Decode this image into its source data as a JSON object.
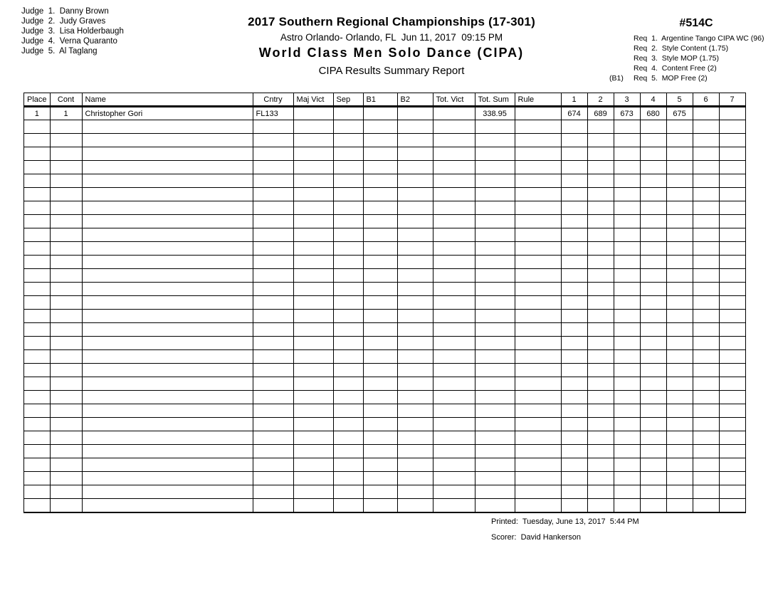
{
  "judges": [
    "Judge  1.  Danny Brown",
    "Judge  2.  Judy Graves",
    "Judge  3.  Lisa Holderbaugh",
    "Judge  4.  Verna Quaranto",
    "Judge  5.  Al Taglang"
  ],
  "header": {
    "title": "2017 Southern Regional Championships (17-301)",
    "venue_date": "Astro Orlando- Orlando, FL  Jun 11, 2017  09:15 PM",
    "event": "World Class Men Solo Dance (CIPA)",
    "report": "CIPA Results Summary Report",
    "event_number": "#514C",
    "requirements": [
      {
        "prefix": "",
        "text": "Req  1.  Argentine Tango CIPA WC (96)"
      },
      {
        "prefix": "",
        "text": "Req  2.  Style Content (1.75)"
      },
      {
        "prefix": "",
        "text": "Req  3.  Style MOP (1.75)"
      },
      {
        "prefix": "",
        "text": "Req  4.  Content Free (2)"
      },
      {
        "prefix": "(B1)",
        "text": "Req  5.  MOP Free (2)"
      }
    ]
  },
  "table": {
    "columns": [
      "Place",
      "Cont",
      "Name",
      "Cntry",
      "Maj Vict",
      "Sep",
      "B1",
      "B2",
      "Tot. Vict",
      "Tot. Sum",
      "Rule",
      "1",
      "2",
      "3",
      "4",
      "5",
      "6",
      "7"
    ],
    "rows": [
      [
        "1",
        "1",
        "Christopher Gori",
        "FL133",
        "",
        "",
        "",
        "",
        "",
        "338.95",
        "",
        "674",
        "689",
        "673",
        "680",
        "675",
        "",
        ""
      ]
    ],
    "empty_row_count": 29
  },
  "footer": {
    "printed": "Printed:  Tuesday, June 13, 2017  5:44 PM",
    "scorer": "Scorer:  David Hankerson"
  }
}
